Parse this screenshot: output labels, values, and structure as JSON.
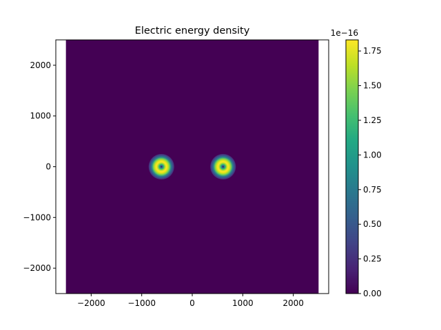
{
  "chart_data": {
    "type": "heatmap",
    "title": "Electric energy density",
    "xlabel": "",
    "ylabel": "",
    "xlim": [
      -2700,
      2700
    ],
    "ylim": [
      -2500,
      2500
    ],
    "data_extent": {
      "x": [
        -2500,
        2500
      ],
      "y": [
        -2500,
        2500
      ]
    },
    "x_ticks": [
      -2000,
      -1000,
      0,
      1000,
      2000
    ],
    "x_tick_labels": [
      "−2000",
      "−1000",
      "0",
      "1000",
      "2000"
    ],
    "y_ticks": [
      -2000,
      -1000,
      0,
      1000,
      2000
    ],
    "y_tick_labels": [
      "−2000",
      "−1000",
      "0",
      "1000",
      "2000"
    ],
    "colormap": "viridis",
    "background_value": 0.0,
    "features": [
      {
        "shape": "ring",
        "cx": -610,
        "cy": 0,
        "peak_radius": 110,
        "width": 70,
        "peak_value": 1.83e-16
      },
      {
        "shape": "ring",
        "cx": 610,
        "cy": 0,
        "peak_radius": 110,
        "width": 70,
        "peak_value": 1.83e-16
      }
    ],
    "colorbar": {
      "min": 0.0,
      "max": 1.83,
      "ticks": [
        0.0,
        0.25,
        0.5,
        0.75,
        1.0,
        1.25,
        1.5,
        1.75
      ],
      "tick_labels": [
        "0.00",
        "0.25",
        "0.50",
        "0.75",
        "1.00",
        "1.25",
        "1.50",
        "1.75"
      ],
      "offset_label": "1e−16"
    },
    "grid": false
  }
}
